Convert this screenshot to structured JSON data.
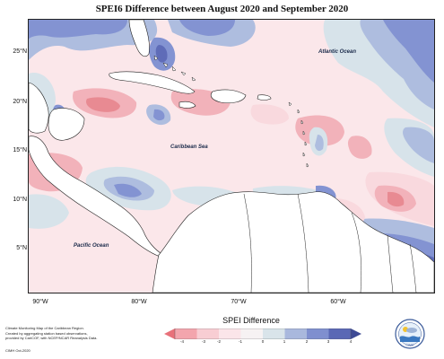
{
  "title": "SPEI6 Difference between August 2020 and September 2020",
  "map": {
    "latitude_labels": [
      "25°N",
      "20°N",
      "15°N",
      "10°N",
      "5°N"
    ],
    "longitude_labels": [
      "90°W",
      "80°W",
      "70°W",
      "60°W"
    ],
    "place_labels": {
      "atlantic": "Atlantic Ocean",
      "caribbean": "Caribbean Sea",
      "pacific": "Pacific Ocean"
    }
  },
  "legend": {
    "title": "SPEI Difference",
    "ticks": [
      "-4",
      "-3",
      "-2",
      "-1",
      "0",
      "1",
      "2",
      "3",
      "4"
    ],
    "colors": [
      "#e8717a",
      "#f3a5ad",
      "#f8cdd3",
      "#fbe5e9",
      "#d9e4ea",
      "#a9b8dd",
      "#7f8fcf",
      "#5a68b5"
    ]
  },
  "footnote": {
    "lines": [
      "Climate Monitoring Map of the Caribbean Region.",
      "Created by aggregating station based observations,",
      "provided by CariCOF, with NCEP/NCAR Reanalysis Data."
    ],
    "credit": "CIMH Oct-2020"
  },
  "logo_text": "CIMH",
  "colors": {
    "land": "#ffffff",
    "dry_strong": "#e88a92",
    "dry_mid": "#f2b2ba",
    "dry_light": "#f9d9de",
    "neutral": "#d7e3ea",
    "wet_light": "#aebddf",
    "wet_mid": "#8393d2",
    "wet_strong": "#5f6cb8"
  }
}
